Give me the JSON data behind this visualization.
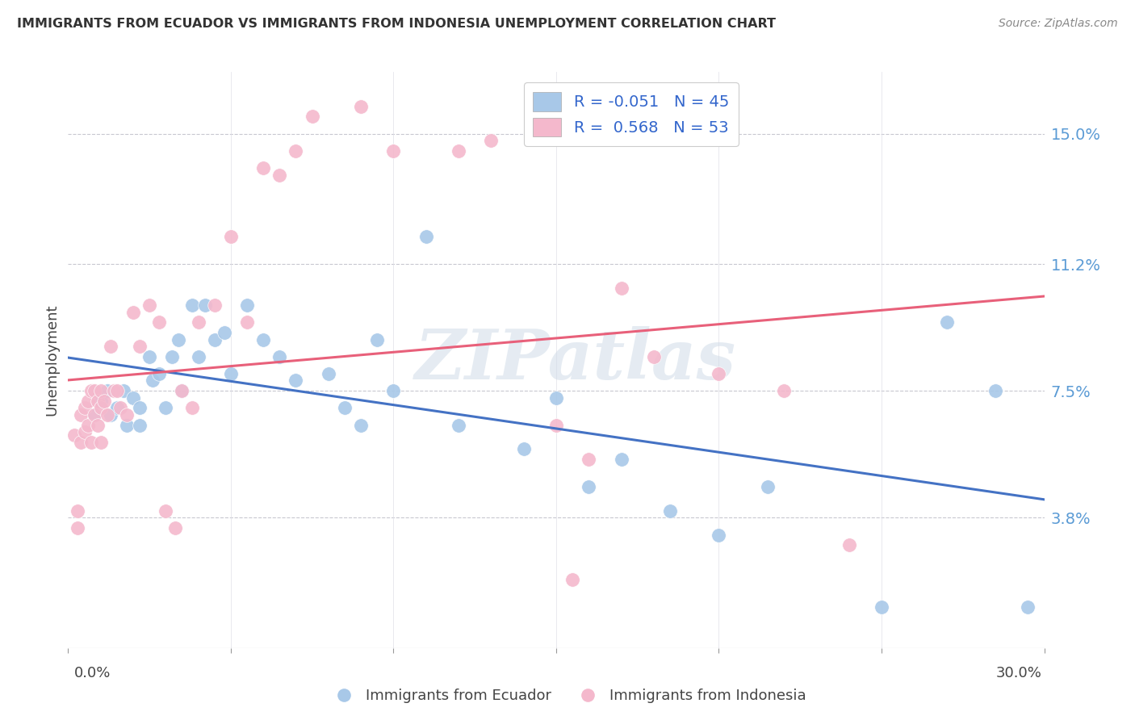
{
  "title": "IMMIGRANTS FROM ECUADOR VS IMMIGRANTS FROM INDONESIA UNEMPLOYMENT CORRELATION CHART",
  "source": "Source: ZipAtlas.com",
  "ylabel": "Unemployment",
  "ytick_vals": [
    0.038,
    0.075,
    0.112,
    0.15
  ],
  "ytick_labels": [
    "3.8%",
    "7.5%",
    "11.2%",
    "15.0%"
  ],
  "xmin": 0.0,
  "xmax": 0.3,
  "ymin": 0.0,
  "ymax": 0.168,
  "ecuador_color": "#a8c8e8",
  "indonesia_color": "#f4b8cc",
  "ecuador_line_color": "#4472c4",
  "indonesia_line_color": "#e8607a",
  "ecuador_R": -0.051,
  "ecuador_N": 45,
  "indonesia_R": 0.568,
  "indonesia_N": 53,
  "watermark": "ZIPatlas",
  "ecuador_x": [
    0.008,
    0.01,
    0.012,
    0.013,
    0.015,
    0.017,
    0.018,
    0.02,
    0.022,
    0.022,
    0.025,
    0.026,
    0.028,
    0.03,
    0.032,
    0.034,
    0.035,
    0.038,
    0.04,
    0.042,
    0.045,
    0.048,
    0.05,
    0.055,
    0.06,
    0.065,
    0.07,
    0.08,
    0.085,
    0.09,
    0.095,
    0.1,
    0.11,
    0.12,
    0.14,
    0.15,
    0.16,
    0.17,
    0.185,
    0.2,
    0.215,
    0.25,
    0.27,
    0.285,
    0.295
  ],
  "ecuador_y": [
    0.068,
    0.072,
    0.075,
    0.068,
    0.07,
    0.075,
    0.065,
    0.073,
    0.07,
    0.065,
    0.085,
    0.078,
    0.08,
    0.07,
    0.085,
    0.09,
    0.075,
    0.1,
    0.085,
    0.1,
    0.09,
    0.092,
    0.08,
    0.1,
    0.09,
    0.085,
    0.078,
    0.08,
    0.07,
    0.065,
    0.09,
    0.075,
    0.12,
    0.065,
    0.058,
    0.073,
    0.047,
    0.055,
    0.04,
    0.033,
    0.047,
    0.012,
    0.095,
    0.075,
    0.012
  ],
  "indonesia_x": [
    0.002,
    0.003,
    0.003,
    0.004,
    0.004,
    0.005,
    0.005,
    0.006,
    0.006,
    0.007,
    0.007,
    0.008,
    0.008,
    0.009,
    0.009,
    0.01,
    0.01,
    0.01,
    0.011,
    0.012,
    0.013,
    0.014,
    0.015,
    0.016,
    0.018,
    0.02,
    0.022,
    0.025,
    0.028,
    0.03,
    0.033,
    0.035,
    0.038,
    0.04,
    0.045,
    0.05,
    0.055,
    0.06,
    0.065,
    0.07,
    0.075,
    0.09,
    0.1,
    0.12,
    0.13,
    0.15,
    0.155,
    0.16,
    0.17,
    0.18,
    0.2,
    0.22,
    0.24
  ],
  "indonesia_y": [
    0.062,
    0.04,
    0.035,
    0.068,
    0.06,
    0.07,
    0.063,
    0.072,
    0.065,
    0.075,
    0.06,
    0.075,
    0.068,
    0.072,
    0.065,
    0.075,
    0.07,
    0.06,
    0.072,
    0.068,
    0.088,
    0.075,
    0.075,
    0.07,
    0.068,
    0.098,
    0.088,
    0.1,
    0.095,
    0.04,
    0.035,
    0.075,
    0.07,
    0.095,
    0.1,
    0.12,
    0.095,
    0.14,
    0.138,
    0.145,
    0.155,
    0.158,
    0.145,
    0.145,
    0.148,
    0.065,
    0.02,
    0.055,
    0.105,
    0.085,
    0.08,
    0.075,
    0.03
  ]
}
